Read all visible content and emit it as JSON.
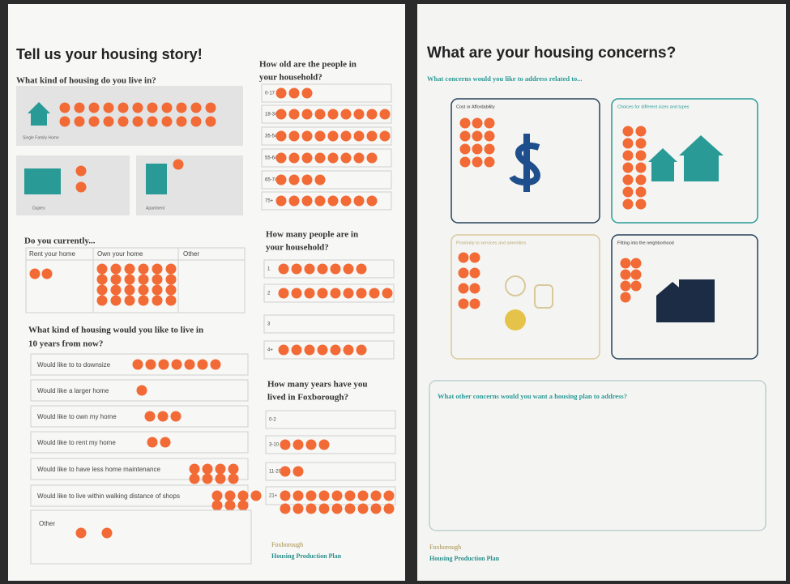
{
  "left": {
    "title": "Tell us your housing story!",
    "live": {
      "question": "What kind of housing do you live in?",
      "options": [
        {
          "label": "Single Family Home",
          "dots": 22
        },
        {
          "label": "Duplex",
          "dots": 2
        },
        {
          "label": "Apartment",
          "dots": 1
        }
      ]
    },
    "tenure": {
      "question": "Do you currently...",
      "options": [
        {
          "label": "Rent your home",
          "dots": 2
        },
        {
          "label": "Own your home",
          "dots": 24
        },
        {
          "label": "Other",
          "dots": 0
        }
      ]
    },
    "future": {
      "question": [
        "What kind of housing would you like to live in",
        "10 years from now?"
      ],
      "options": [
        {
          "label": "Would like to to downsize",
          "dots": 7
        },
        {
          "label": "Would like a larger home",
          "dots": 1
        },
        {
          "label": "Would like to own my home",
          "dots": 3
        },
        {
          "label": "Would like to rent my home",
          "dots": 2
        },
        {
          "label": "Would like to have less home maintenance",
          "dots": 8
        },
        {
          "label": "Would like to live within walking distance of shops",
          "dots": 7
        },
        {
          "label": "Other",
          "dots": 2
        }
      ]
    },
    "ages": {
      "question": [
        "How old are the people in",
        "your household?"
      ],
      "options": [
        {
          "label": "0-17",
          "dots": 3
        },
        {
          "label": "18-34",
          "dots": 9
        },
        {
          "label": "35-54",
          "dots": 9
        },
        {
          "label": "55-64",
          "dots": 8
        },
        {
          "label": "65-74",
          "dots": 4
        },
        {
          "label": "75+",
          "dots": 8
        }
      ]
    },
    "size": {
      "question": [
        "How many people are in",
        "your household?"
      ],
      "options": [
        {
          "label": "1",
          "dots": 7
        },
        {
          "label": "2",
          "dots": 9
        },
        {
          "label": "3",
          "dots": 0
        },
        {
          "label": "4+",
          "dots": 7
        }
      ]
    },
    "years": {
      "question": [
        "How many years have you",
        "lived in Foxborough?"
      ],
      "options": [
        {
          "label": "0-2",
          "dots": 0
        },
        {
          "label": "3-10",
          "dots": 4
        },
        {
          "label": "11-20",
          "dots": 2
        },
        {
          "label": "21+",
          "dots": 18
        }
      ]
    },
    "footer": [
      "Foxborough",
      "Housing Production Plan"
    ]
  },
  "right": {
    "title": "What are your housing concerns?",
    "subtitle": "What concerns would you like to address related to...",
    "concerns": [
      {
        "label": "Cost or Affordability",
        "dots": 12
      },
      {
        "label": "Choices for different sizes and types",
        "dots": 14
      },
      {
        "label": "Proximity to services and amenities",
        "dots": 8
      },
      {
        "label": "Fitting into the neighborhood",
        "dots": 7
      }
    ],
    "other": "What other concerns would you want a housing plan to address?",
    "footer": [
      "Foxborough",
      "Housing Production Plan"
    ]
  }
}
